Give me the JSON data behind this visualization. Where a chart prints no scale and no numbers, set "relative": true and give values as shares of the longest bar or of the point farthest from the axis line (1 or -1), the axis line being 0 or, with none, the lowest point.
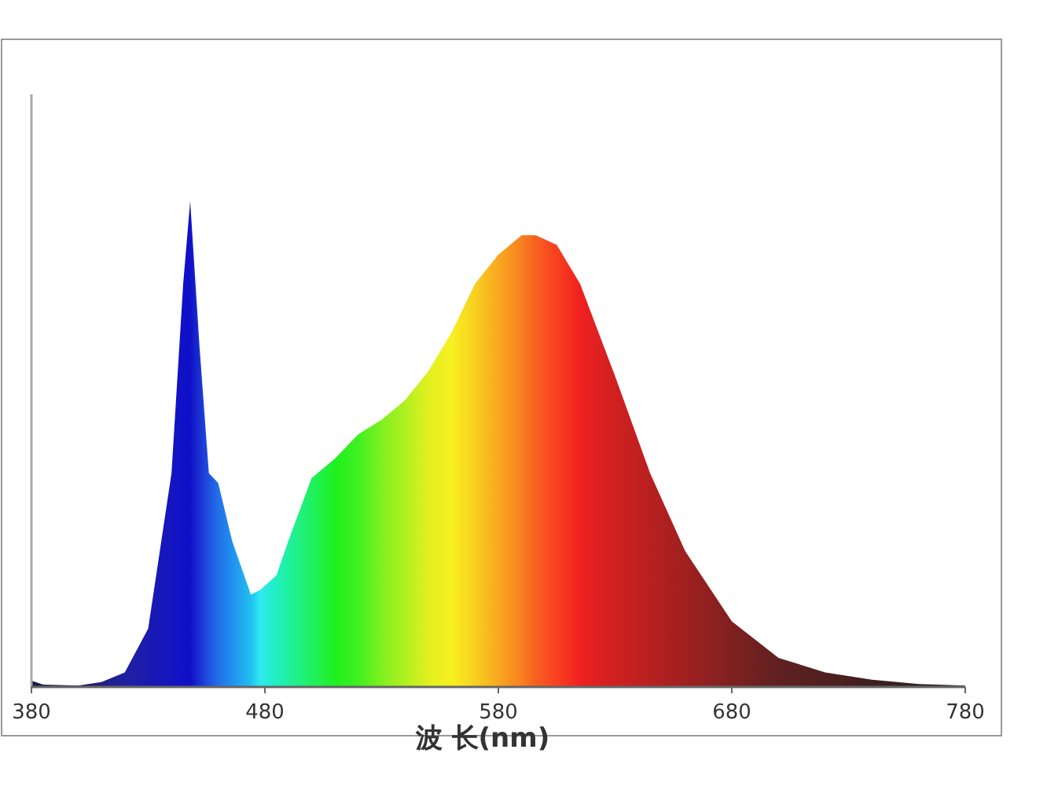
{
  "chart_data": {
    "type": "area",
    "relative": true,
    "xlabel": "波 长(nm)",
    "xlim": [
      380,
      780
    ],
    "xticks": [
      380,
      480,
      580,
      680,
      780
    ],
    "series": [
      {
        "x": [
          380,
          385,
          400,
          410,
          420,
          430,
          440,
          445,
          448,
          452,
          456,
          460,
          466,
          474,
          478,
          485,
          490,
          500,
          510,
          520,
          530,
          540,
          550,
          560,
          570,
          580,
          590,
          596,
          605,
          615,
          630,
          645,
          660,
          680,
          700,
          720,
          740,
          760,
          780
        ],
        "values": [
          0.013,
          0.005,
          0.003,
          0.01,
          0.03,
          0.12,
          0.44,
          0.83,
          1,
          0.7,
          0.44,
          0.42,
          0.3,
          0.19,
          0.2,
          0.23,
          0.3,
          0.43,
          0.47,
          0.52,
          0.55,
          0.59,
          0.65,
          0.73,
          0.83,
          0.89,
          0.93,
          0.93,
          0.91,
          0.83,
          0.64,
          0.44,
          0.28,
          0.135,
          0.06,
          0.03,
          0.015,
          0.006,
          0.003
        ],
        "colors": [
          "#1a1a40",
          "#1a1a50",
          "#1a1a60",
          "#202080",
          "#2020a0",
          "#1a1ab0",
          "#1515c0",
          "#1010c8",
          "#1010c8",
          "#1a30d0",
          "#2050e0",
          "#2070e8",
          "#2090f0",
          "#20c0f0",
          "#30e8f0",
          "#20f0c0",
          "#20f0a0",
          "#20f060",
          "#20f020",
          "#40f020",
          "#80f020",
          "#b0f020",
          "#e0f020",
          "#f8f020",
          "#f8d020",
          "#f8a820",
          "#f88020",
          "#f86020",
          "#f84020",
          "#f02020",
          "#d02020",
          "#b82020",
          "#a02020",
          "#802020",
          "#602020",
          "#502020",
          "#402020",
          "#302020",
          "#202020"
        ]
      }
    ]
  }
}
